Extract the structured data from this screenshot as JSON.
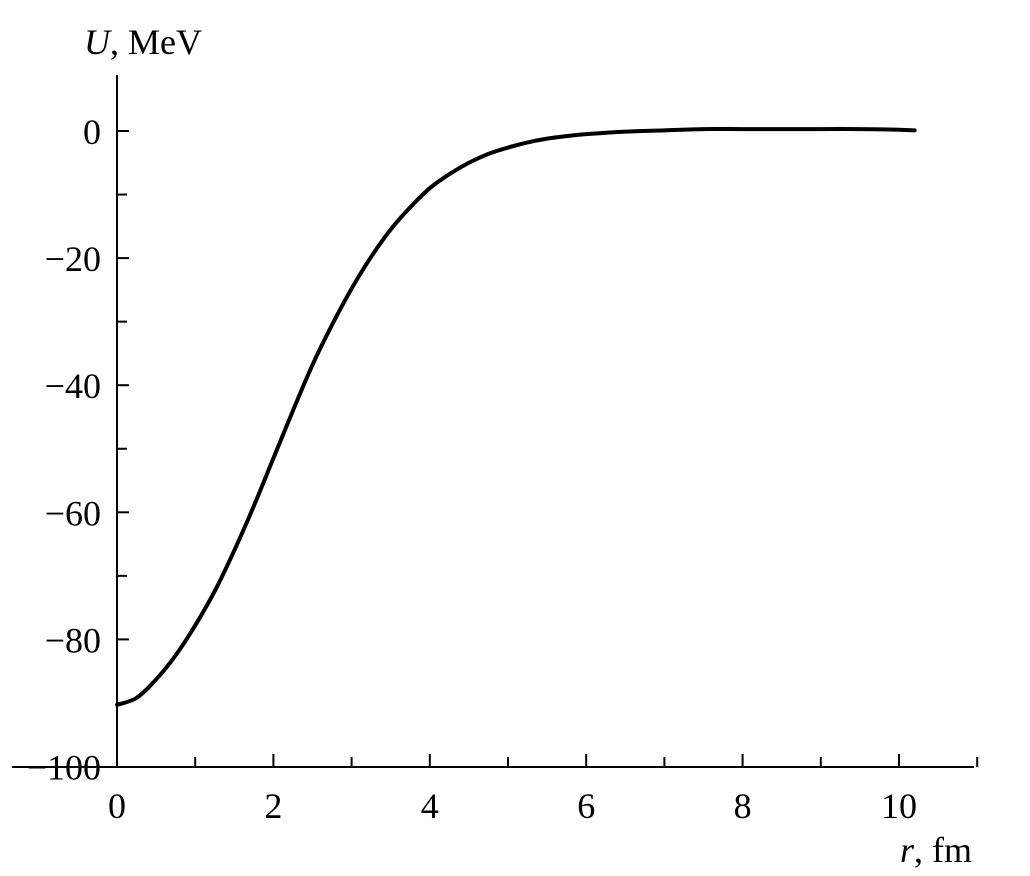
{
  "chart_data": {
    "type": "line",
    "xlabel": {
      "var": "r",
      "unit": ", fm"
    },
    "ylabel": {
      "var": "U",
      "unit": ", MeV"
    },
    "xlim": [
      0,
      11
    ],
    "ylim": [
      -100,
      9
    ],
    "x_major_ticks": [
      0,
      2,
      4,
      6,
      8,
      10
    ],
    "x_minor_ticks": [
      1,
      3,
      5,
      7,
      9,
      11
    ],
    "x_tick_labels": [
      "0",
      "2",
      "4",
      "6",
      "8",
      "10"
    ],
    "y_major_ticks": [
      0,
      -20,
      -40,
      -60,
      -80,
      -100
    ],
    "y_minor_ticks": [
      -10,
      -30,
      -50,
      -70,
      -90
    ],
    "y_tick_labels": [
      "0",
      "−20",
      "−40",
      "−60",
      "−80",
      "−100"
    ],
    "grid": false,
    "series": [
      {
        "color": "#000000",
        "x": [
          0,
          0.25,
          0.5,
          0.75,
          1.0,
          1.25,
          1.5,
          1.75,
          2.0,
          2.25,
          2.5,
          2.75,
          3.0,
          3.25,
          3.5,
          3.75,
          4.0,
          4.25,
          4.5,
          4.75,
          5.0,
          5.25,
          5.5,
          5.75,
          6.0,
          6.5,
          7.0,
          7.5,
          8.0,
          8.5,
          9.0,
          9.5,
          10.0,
          10.2
        ],
        "y": [
          -90.3,
          -89.2,
          -86.3,
          -82.5,
          -77.8,
          -72.4,
          -66.0,
          -59.0,
          -51.5,
          -44.0,
          -36.8,
          -30.5,
          -24.8,
          -19.8,
          -15.5,
          -12.0,
          -9.0,
          -6.8,
          -5.0,
          -3.6,
          -2.6,
          -1.8,
          -1.2,
          -0.8,
          -0.5,
          -0.1,
          0.1,
          0.3,
          0.3,
          0.3,
          0.3,
          0.3,
          0.2,
          0.1
        ]
      }
    ]
  }
}
